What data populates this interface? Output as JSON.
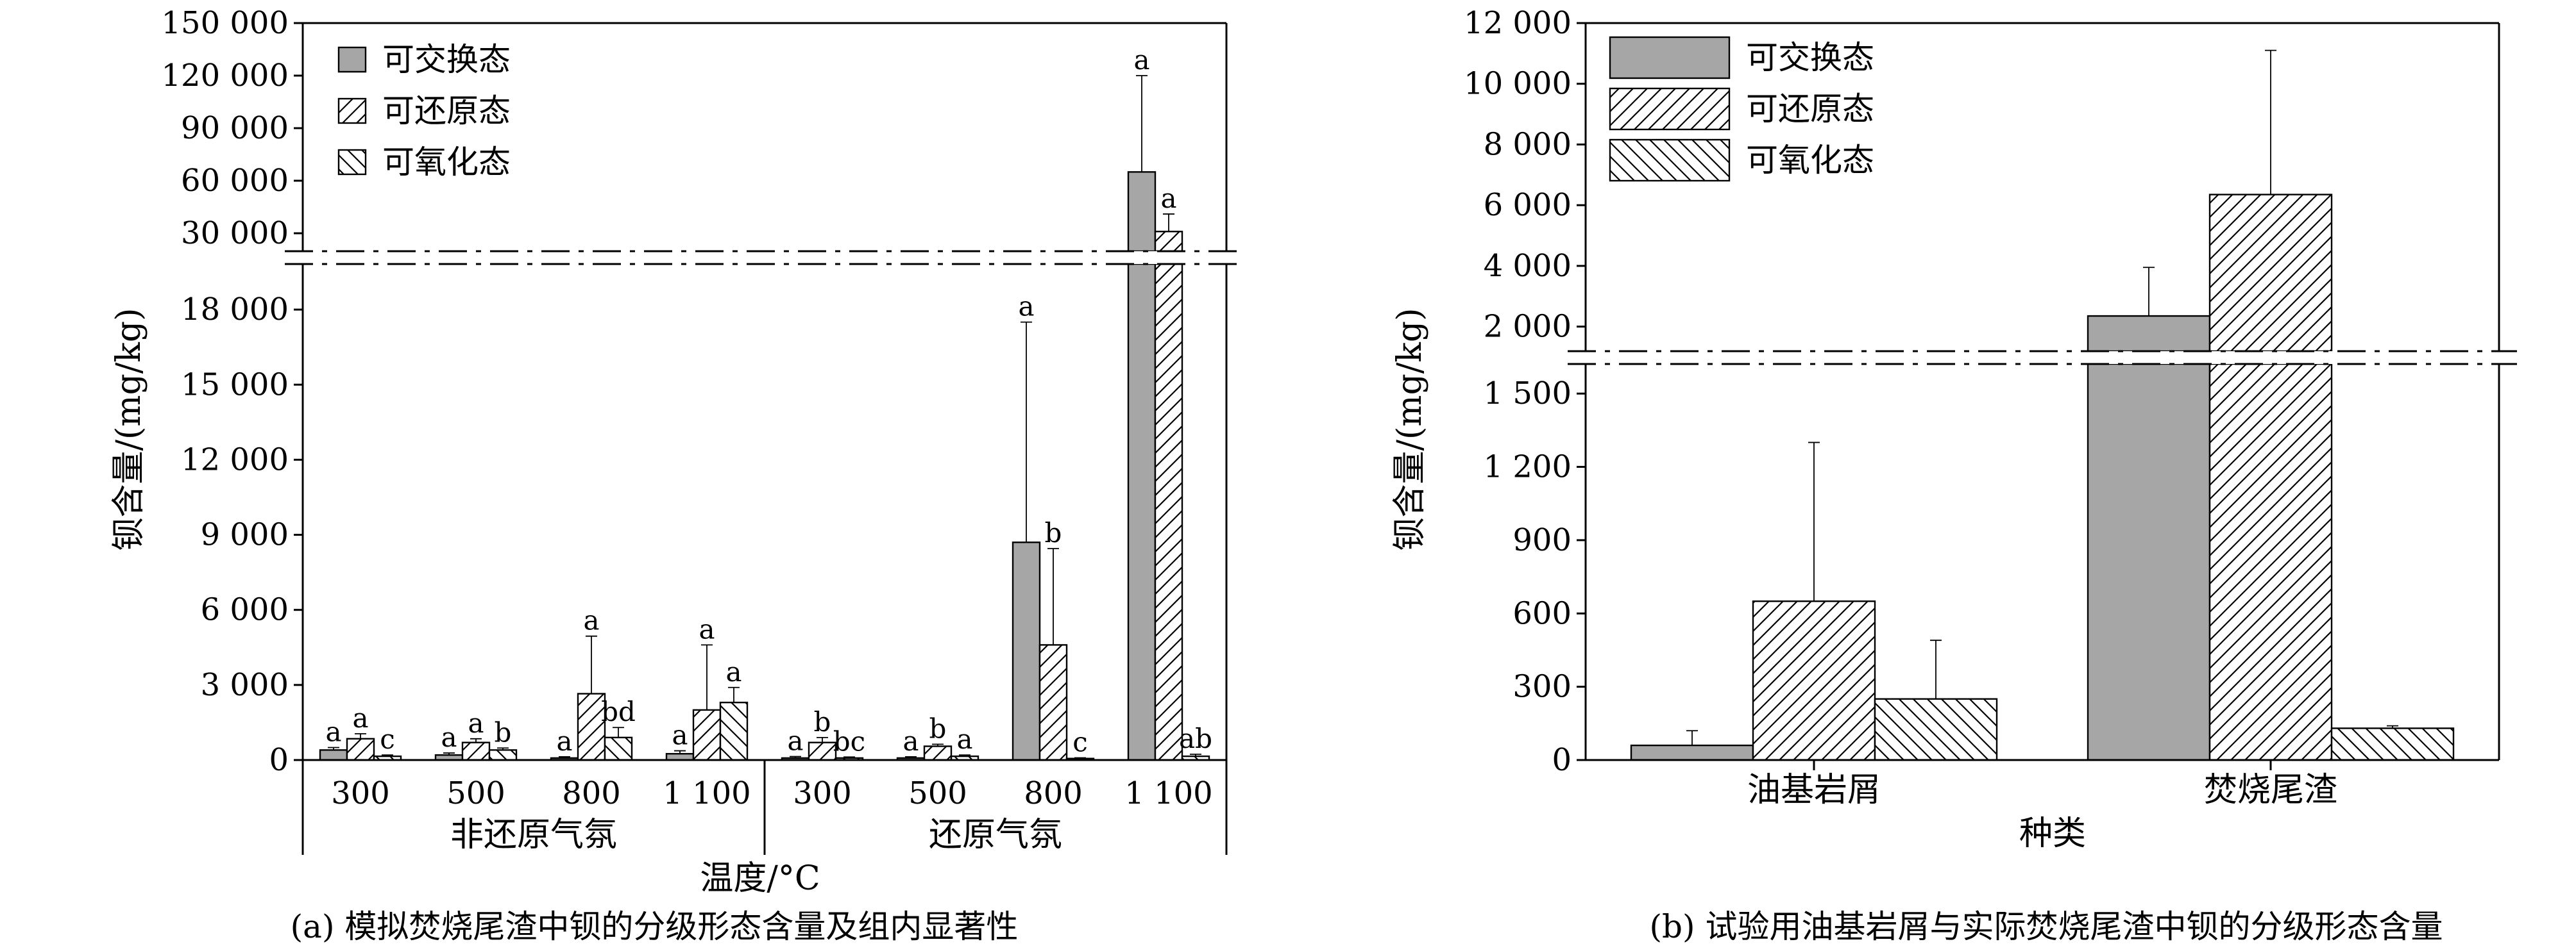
{
  "captions": {
    "a": "(a) 模拟焚烧尾渣中钡的分级形态含量及组内显著性",
    "b": "(b) 试验用油基岩屑与实际焚烧尾渣中钡的分级形态含量"
  },
  "legend": [
    "可交换态",
    "可还原态",
    "可氧化态"
  ],
  "colors": {
    "exchangeable": "#a6a6a6",
    "hatch_fill": "#ffffff",
    "stroke": "#000000"
  },
  "chart_data": [
    {
      "type": "bar",
      "id": "a",
      "ylabel": "钡含量/(mg/kg)",
      "xlabel": "温度/°C",
      "groups": [
        {
          "label": "非还原气氛",
          "categories": [
            "300",
            "500",
            "800",
            "1 100"
          ]
        },
        {
          "label": "还原气氛",
          "categories": [
            "300",
            "500",
            "800",
            "1 100"
          ]
        }
      ],
      "axis_break": {
        "lower_range": [
          0,
          20000
        ],
        "upper_range": [
          15000,
          150000
        ]
      },
      "lower_ticks": [
        {
          "v": 0,
          "t": "0"
        },
        {
          "v": 3000,
          "t": "3 000"
        },
        {
          "v": 6000,
          "t": "6 000"
        },
        {
          "v": 9000,
          "t": "9 000"
        },
        {
          "v": 12000,
          "t": "12 000"
        },
        {
          "v": 15000,
          "t": "15 000"
        },
        {
          "v": 18000,
          "t": "18 000"
        }
      ],
      "upper_ticks": [
        {
          "v": 30000,
          "t": "30 000"
        },
        {
          "v": 60000,
          "t": "60 000"
        },
        {
          "v": 90000,
          "t": "90 000"
        },
        {
          "v": 120000,
          "t": "120 000"
        },
        {
          "v": 150000,
          "t": "150 000"
        }
      ],
      "legend_position": "top-left",
      "series": [
        {
          "name": "可交换态",
          "values": [
            400,
            200,
            80,
            250,
            80,
            80,
            8700,
            65000
          ],
          "errors": [
            100,
            80,
            50,
            120,
            60,
            50,
            8800,
            55000
          ],
          "letters": [
            "a",
            "a",
            "a",
            "a",
            "a",
            "a",
            "a",
            "a"
          ]
        },
        {
          "name": "可还原态",
          "values": [
            850,
            700,
            2650,
            2000,
            700,
            550,
            4600,
            31000
          ],
          "errors": [
            200,
            150,
            2300,
            2600,
            200,
            80,
            3850,
            10000
          ],
          "letters": [
            "a",
            "a",
            "a",
            "a",
            "b",
            "b",
            "b",
            "a"
          ]
        },
        {
          "name": "可氧化态",
          "values": [
            150,
            400,
            900,
            2300,
            80,
            150,
            60,
            150
          ],
          "errors": [
            50,
            80,
            400,
            600,
            40,
            50,
            30,
            80
          ],
          "letters": [
            "c",
            "b",
            "bd",
            "a",
            "bc",
            "a",
            "c",
            "ab"
          ]
        }
      ]
    },
    {
      "type": "bar",
      "id": "b",
      "ylabel": "钡含量/(mg/kg)",
      "xlabel": "种类",
      "categories": [
        "油基岩屑",
        "焚烧尾渣"
      ],
      "axis_break": {
        "lower_range": [
          0,
          1650
        ],
        "upper_range": [
          1000,
          12000
        ]
      },
      "lower_ticks": [
        {
          "v": 0,
          "t": "0"
        },
        {
          "v": 300,
          "t": "300"
        },
        {
          "v": 600,
          "t": "600"
        },
        {
          "v": 900,
          "t": "900"
        },
        {
          "v": 1200,
          "t": "1 200"
        },
        {
          "v": 1500,
          "t": "1 500"
        }
      ],
      "upper_ticks": [
        {
          "v": 2000,
          "t": "2 000"
        },
        {
          "v": 4000,
          "t": "4 000"
        },
        {
          "v": 6000,
          "t": "6 000"
        },
        {
          "v": 8000,
          "t": "8 000"
        },
        {
          "v": 10000,
          "t": "10 000"
        },
        {
          "v": 12000,
          "t": "12 000"
        }
      ],
      "legend_position": "top-left",
      "series": [
        {
          "name": "可交换态",
          "values": [
            60,
            2350
          ],
          "errors": [
            60,
            1600
          ]
        },
        {
          "name": "可还原态",
          "values": [
            650,
            6350
          ],
          "errors": [
            650,
            4750
          ]
        },
        {
          "name": "可氧化态",
          "values": [
            250,
            130
          ],
          "errors": [
            240,
            10
          ]
        }
      ]
    }
  ]
}
